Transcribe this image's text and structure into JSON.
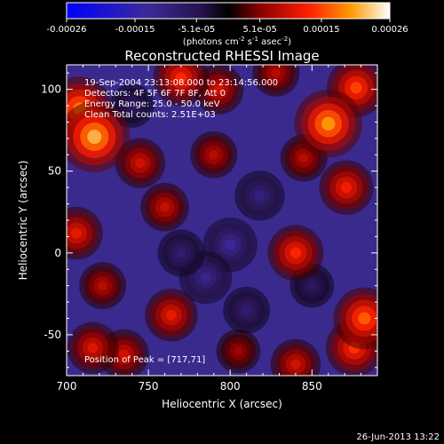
{
  "chart_data": {
    "type": "heatmap",
    "title": "Reconstructed RHESSI Image",
    "xlabel": "Heliocentric X (arcsec)",
    "ylabel": "Heliocentric Y (arcsec)",
    "xlim": [
      700,
      890
    ],
    "ylim": [
      -75,
      115
    ],
    "x_ticks": [
      700,
      750,
      800,
      850
    ],
    "y_ticks": [
      -50,
      0,
      50,
      100
    ],
    "colorbar": {
      "min": -0.00026,
      "max": 0.00026,
      "tick_values": [
        -0.00026,
        -0.00015,
        -5.1e-05,
        5.1e-05,
        0.00015,
        0.00026
      ],
      "tick_labels": [
        "-0.00026",
        "-0.00015",
        "-5.1e-05",
        "5.1e-05",
        "0.00015",
        "0.00026"
      ],
      "units_prefix": "(photons cm",
      "units_exp1": "-2",
      "units_mid1": " s",
      "units_exp2": "-1",
      "units_mid2": " asec",
      "units_exp3": "-2",
      "units_suffix": ")"
    },
    "annotations": {
      "time_range": "19-Sep-2004 23:13:08.000 to 23:14:56.000",
      "detectors": "Detectors: 4F 5F 6F 7F 8F, Att 0",
      "energy_range": "Energy Range: 25.0 - 50.0 keV",
      "clean_counts": "Clean    Total counts: 2.51E+03",
      "peak_position": "Position of Peak = [717,71]"
    },
    "sources": [
      {
        "x": 717,
        "y": 71,
        "value": 0.00026
      },
      {
        "x": 708,
        "y": 88,
        "value": 0.00022
      },
      {
        "x": 770,
        "y": 107,
        "value": 0.00016
      },
      {
        "x": 793,
        "y": 100,
        "value": 0.00012
      },
      {
        "x": 860,
        "y": 79,
        "value": 0.00024
      },
      {
        "x": 877,
        "y": 101,
        "value": 0.00018
      },
      {
        "x": 871,
        "y": 40,
        "value": 0.00015
      },
      {
        "x": 840,
        "y": 0,
        "value": 0.00016
      },
      {
        "x": 882,
        "y": -40,
        "value": 0.0002
      },
      {
        "x": 876,
        "y": -58,
        "value": 0.00017
      },
      {
        "x": 764,
        "y": -38,
        "value": 0.00014
      },
      {
        "x": 716,
        "y": -58,
        "value": 0.00013
      },
      {
        "x": 735,
        "y": -62,
        "value": 0.00012
      },
      {
        "x": 840,
        "y": -68,
        "value": 0.00012
      },
      {
        "x": 706,
        "y": 12,
        "value": 0.00014
      },
      {
        "x": 745,
        "y": 55,
        "value": 0.00012
      },
      {
        "x": 760,
        "y": 28,
        "value": 0.00011
      },
      {
        "x": 790,
        "y": 60,
        "value": 0.0001
      },
      {
        "x": 828,
        "y": 110,
        "value": 0.0001
      },
      {
        "x": 845,
        "y": 58,
        "value": 0.0001
      },
      {
        "x": 805,
        "y": -60,
        "value": 8e-05
      },
      {
        "x": 722,
        "y": -20,
        "value": 0.0001
      },
      {
        "x": 800,
        "y": 5,
        "value": -0.00015
      },
      {
        "x": 818,
        "y": 35,
        "value": -0.00012
      },
      {
        "x": 785,
        "y": -15,
        "value": -0.00014
      },
      {
        "x": 770,
        "y": 0,
        "value": -0.0001
      },
      {
        "x": 810,
        "y": -35,
        "value": -0.0001
      },
      {
        "x": 740,
        "y": 90,
        "value": -8e-05
      },
      {
        "x": 850,
        "y": -20,
        "value": -8e-05
      }
    ]
  },
  "footer": {
    "date": "26-Jun-2013 13:22"
  }
}
